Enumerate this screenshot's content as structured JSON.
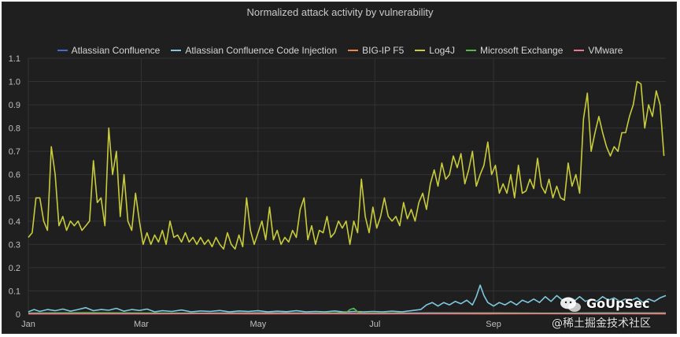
{
  "chart_data": {
    "type": "line",
    "title": "Normalized attack activity by vulnerability",
    "xlabel": "",
    "ylabel": "",
    "ylim": [
      0,
      1.1
    ],
    "y_ticks": [
      "0",
      "0.1",
      "0.2",
      "0.3",
      "0.4",
      "0.5",
      "0.6",
      "0.7",
      "0.8",
      "0.9",
      "1.0",
      "1.1"
    ],
    "x_ticks": [
      {
        "label": "Jan",
        "day": 0
      },
      {
        "label": "Mar",
        "day": 59
      },
      {
        "label": "May",
        "day": 120
      },
      {
        "label": "Jul",
        "day": 181
      },
      {
        "label": "Sep",
        "day": 243
      }
    ],
    "x_range_days": [
      0,
      333
    ],
    "grid": true,
    "legend_position": "top-center",
    "series": [
      {
        "name": "Atlassian Confluence",
        "color": "#3f6fc4",
        "points": [
          [
            0,
            0.005
          ],
          [
            30,
            0.006
          ],
          [
            60,
            0.004
          ],
          [
            90,
            0.005
          ],
          [
            120,
            0.006
          ],
          [
            150,
            0.005
          ],
          [
            180,
            0.004
          ],
          [
            210,
            0.006
          ],
          [
            240,
            0.005
          ],
          [
            270,
            0.004
          ],
          [
            300,
            0.006
          ],
          [
            333,
            0.005
          ]
        ]
      },
      {
        "name": "Atlassian Confluence Code Injection",
        "color": "#7ec8dd",
        "points": [
          [
            0,
            0.01
          ],
          [
            3,
            0.02
          ],
          [
            6,
            0.012
          ],
          [
            10,
            0.02
          ],
          [
            14,
            0.015
          ],
          [
            18,
            0.022
          ],
          [
            22,
            0.013
          ],
          [
            26,
            0.02
          ],
          [
            30,
            0.028
          ],
          [
            34,
            0.015
          ],
          [
            38,
            0.02
          ],
          [
            42,
            0.017
          ],
          [
            46,
            0.025
          ],
          [
            50,
            0.013
          ],
          [
            54,
            0.02
          ],
          [
            58,
            0.016
          ],
          [
            62,
            0.022
          ],
          [
            66,
            0.01
          ],
          [
            70,
            0.015
          ],
          [
            75,
            0.012
          ],
          [
            80,
            0.018
          ],
          [
            85,
            0.01
          ],
          [
            90,
            0.014
          ],
          [
            95,
            0.012
          ],
          [
            100,
            0.016
          ],
          [
            105,
            0.01
          ],
          [
            110,
            0.014
          ],
          [
            115,
            0.012
          ],
          [
            120,
            0.015
          ],
          [
            125,
            0.01
          ],
          [
            130,
            0.013
          ],
          [
            135,
            0.011
          ],
          [
            140,
            0.015
          ],
          [
            145,
            0.01
          ],
          [
            150,
            0.012
          ],
          [
            155,
            0.01
          ],
          [
            160,
            0.014
          ],
          [
            165,
            0.009
          ],
          [
            170,
            0.012
          ],
          [
            175,
            0.01
          ],
          [
            180,
            0.012
          ],
          [
            185,
            0.01
          ],
          [
            190,
            0.013
          ],
          [
            195,
            0.01
          ],
          [
            200,
            0.015
          ],
          [
            205,
            0.02
          ],
          [
            208,
            0.04
          ],
          [
            211,
            0.05
          ],
          [
            214,
            0.035
          ],
          [
            217,
            0.05
          ],
          [
            220,
            0.04
          ],
          [
            223,
            0.055
          ],
          [
            226,
            0.045
          ],
          [
            229,
            0.06
          ],
          [
            232,
            0.04
          ],
          [
            234,
            0.075
          ],
          [
            236,
            0.125
          ],
          [
            238,
            0.08
          ],
          [
            240,
            0.05
          ],
          [
            243,
            0.035
          ],
          [
            246,
            0.05
          ],
          [
            249,
            0.04
          ],
          [
            252,
            0.055
          ],
          [
            255,
            0.04
          ],
          [
            258,
            0.06
          ],
          [
            261,
            0.05
          ],
          [
            264,
            0.065
          ],
          [
            267,
            0.05
          ],
          [
            270,
            0.075
          ],
          [
            273,
            0.055
          ],
          [
            276,
            0.08
          ],
          [
            279,
            0.06
          ],
          [
            282,
            0.07
          ],
          [
            285,
            0.055
          ],
          [
            288,
            0.075
          ],
          [
            291,
            0.055
          ],
          [
            294,
            0.065
          ],
          [
            297,
            0.055
          ],
          [
            300,
            0.075
          ],
          [
            303,
            0.06
          ],
          [
            306,
            0.07
          ],
          [
            309,
            0.055
          ],
          [
            312,
            0.065
          ],
          [
            315,
            0.06
          ],
          [
            318,
            0.07
          ],
          [
            321,
            0.05
          ],
          [
            324,
            0.065
          ],
          [
            327,
            0.055
          ],
          [
            330,
            0.07
          ],
          [
            333,
            0.08
          ]
        ]
      },
      {
        "name": "BIG-IP F5",
        "color": "#e8894b",
        "points": [
          [
            0,
            0.002
          ],
          [
            60,
            0.003
          ],
          [
            120,
            0.002
          ],
          [
            180,
            0.003
          ],
          [
            240,
            0.002
          ],
          [
            300,
            0.003
          ],
          [
            333,
            0.002
          ]
        ]
      },
      {
        "name": "Log4J",
        "color": "#c8cc3a",
        "points": [
          [
            0,
            0.33
          ],
          [
            2,
            0.35
          ],
          [
            4,
            0.5
          ],
          [
            6,
            0.5
          ],
          [
            8,
            0.4
          ],
          [
            10,
            0.36
          ],
          [
            12,
            0.72
          ],
          [
            14,
            0.6
          ],
          [
            16,
            0.38
          ],
          [
            18,
            0.42
          ],
          [
            20,
            0.36
          ],
          [
            22,
            0.4
          ],
          [
            24,
            0.38
          ],
          [
            26,
            0.4
          ],
          [
            28,
            0.36
          ],
          [
            30,
            0.38
          ],
          [
            32,
            0.4
          ],
          [
            34,
            0.66
          ],
          [
            36,
            0.48
          ],
          [
            38,
            0.5
          ],
          [
            40,
            0.38
          ],
          [
            42,
            0.8
          ],
          [
            44,
            0.6
          ],
          [
            46,
            0.7
          ],
          [
            48,
            0.42
          ],
          [
            50,
            0.6
          ],
          [
            52,
            0.4
          ],
          [
            54,
            0.36
          ],
          [
            56,
            0.52
          ],
          [
            58,
            0.4
          ],
          [
            60,
            0.3
          ],
          [
            62,
            0.35
          ],
          [
            64,
            0.3
          ],
          [
            66,
            0.34
          ],
          [
            68,
            0.31
          ],
          [
            70,
            0.36
          ],
          [
            72,
            0.3
          ],
          [
            74,
            0.4
          ],
          [
            76,
            0.33
          ],
          [
            78,
            0.34
          ],
          [
            80,
            0.31
          ],
          [
            82,
            0.35
          ],
          [
            84,
            0.31
          ],
          [
            86,
            0.33
          ],
          [
            88,
            0.3
          ],
          [
            90,
            0.33
          ],
          [
            92,
            0.3
          ],
          [
            94,
            0.32
          ],
          [
            96,
            0.29
          ],
          [
            98,
            0.33
          ],
          [
            100,
            0.3
          ],
          [
            102,
            0.28
          ],
          [
            104,
            0.35
          ],
          [
            106,
            0.3
          ],
          [
            108,
            0.28
          ],
          [
            110,
            0.34
          ],
          [
            112,
            0.29
          ],
          [
            114,
            0.5
          ],
          [
            116,
            0.36
          ],
          [
            118,
            0.3
          ],
          [
            120,
            0.35
          ],
          [
            122,
            0.4
          ],
          [
            124,
            0.32
          ],
          [
            126,
            0.46
          ],
          [
            128,
            0.32
          ],
          [
            130,
            0.36
          ],
          [
            132,
            0.3
          ],
          [
            134,
            0.33
          ],
          [
            136,
            0.31
          ],
          [
            138,
            0.36
          ],
          [
            140,
            0.33
          ],
          [
            142,
            0.45
          ],
          [
            144,
            0.5
          ],
          [
            146,
            0.32
          ],
          [
            148,
            0.38
          ],
          [
            150,
            0.3
          ],
          [
            152,
            0.36
          ],
          [
            154,
            0.35
          ],
          [
            156,
            0.42
          ],
          [
            158,
            0.33
          ],
          [
            160,
            0.35
          ],
          [
            162,
            0.4
          ],
          [
            164,
            0.37
          ],
          [
            166,
            0.4
          ],
          [
            168,
            0.3
          ],
          [
            170,
            0.4
          ],
          [
            172,
            0.35
          ],
          [
            174,
            0.58
          ],
          [
            176,
            0.42
          ],
          [
            178,
            0.35
          ],
          [
            180,
            0.46
          ],
          [
            182,
            0.37
          ],
          [
            184,
            0.42
          ],
          [
            186,
            0.5
          ],
          [
            188,
            0.42
          ],
          [
            190,
            0.4
          ],
          [
            192,
            0.42
          ],
          [
            194,
            0.38
          ],
          [
            196,
            0.48
          ],
          [
            198,
            0.41
          ],
          [
            200,
            0.45
          ],
          [
            202,
            0.4
          ],
          [
            204,
            0.48
          ],
          [
            206,
            0.52
          ],
          [
            208,
            0.45
          ],
          [
            210,
            0.56
          ],
          [
            212,
            0.62
          ],
          [
            214,
            0.55
          ],
          [
            216,
            0.65
          ],
          [
            218,
            0.58
          ],
          [
            220,
            0.6
          ],
          [
            222,
            0.68
          ],
          [
            224,
            0.63
          ],
          [
            226,
            0.69
          ],
          [
            228,
            0.56
          ],
          [
            230,
            0.62
          ],
          [
            232,
            0.7
          ],
          [
            234,
            0.55
          ],
          [
            236,
            0.6
          ],
          [
            238,
            0.64
          ],
          [
            240,
            0.74
          ],
          [
            242,
            0.6
          ],
          [
            244,
            0.64
          ],
          [
            246,
            0.52
          ],
          [
            248,
            0.56
          ],
          [
            250,
            0.52
          ],
          [
            252,
            0.6
          ],
          [
            254,
            0.5
          ],
          [
            256,
            0.64
          ],
          [
            258,
            0.52
          ],
          [
            260,
            0.53
          ],
          [
            262,
            0.58
          ],
          [
            264,
            0.54
          ],
          [
            266,
            0.67
          ],
          [
            268,
            0.55
          ],
          [
            270,
            0.52
          ],
          [
            272,
            0.58
          ],
          [
            274,
            0.5
          ],
          [
            276,
            0.55
          ],
          [
            278,
            0.5
          ],
          [
            280,
            0.49
          ],
          [
            282,
            0.65
          ],
          [
            284,
            0.55
          ],
          [
            286,
            0.6
          ],
          [
            288,
            0.52
          ],
          [
            290,
            0.84
          ],
          [
            292,
            0.95
          ],
          [
            294,
            0.7
          ],
          [
            296,
            0.78
          ],
          [
            298,
            0.85
          ],
          [
            300,
            0.78
          ],
          [
            302,
            0.72
          ],
          [
            304,
            0.68
          ],
          [
            306,
            0.72
          ],
          [
            308,
            0.7
          ],
          [
            310,
            0.78
          ],
          [
            312,
            0.78
          ],
          [
            314,
            0.85
          ],
          [
            316,
            0.9
          ],
          [
            318,
            1.0
          ],
          [
            320,
            0.99
          ],
          [
            322,
            0.8
          ],
          [
            324,
            0.9
          ],
          [
            326,
            0.85
          ],
          [
            328,
            0.96
          ],
          [
            330,
            0.9
          ],
          [
            332,
            0.68
          ]
        ]
      },
      {
        "name": "Microsoft Exchange",
        "color": "#56b94c",
        "points": [
          [
            0,
            0.004
          ],
          [
            30,
            0.006
          ],
          [
            60,
            0.005
          ],
          [
            90,
            0.004
          ],
          [
            120,
            0.005
          ],
          [
            150,
            0.004
          ],
          [
            166,
            0.006
          ],
          [
            168,
            0.02
          ],
          [
            170,
            0.025
          ],
          [
            172,
            0.01
          ],
          [
            174,
            0.005
          ],
          [
            200,
            0.004
          ],
          [
            240,
            0.005
          ],
          [
            280,
            0.004
          ],
          [
            333,
            0.005
          ]
        ]
      },
      {
        "name": "VMware",
        "color": "#e87a8a",
        "points": [
          [
            0,
            0.002
          ],
          [
            60,
            0.002
          ],
          [
            120,
            0.003
          ],
          [
            180,
            0.002
          ],
          [
            240,
            0.003
          ],
          [
            300,
            0.002
          ],
          [
            333,
            0.003
          ]
        ]
      }
    ]
  },
  "watermark": {
    "brand": "GoUpSec",
    "sub": "@稀土掘金技术社区"
  }
}
